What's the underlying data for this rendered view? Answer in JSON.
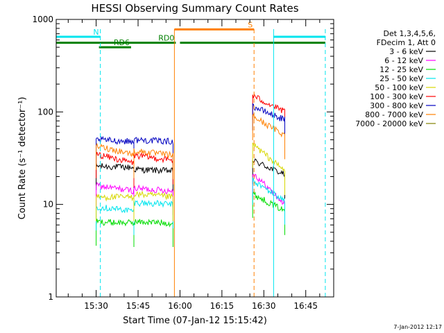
{
  "chart_data": {
    "type": "line",
    "title": "HESSI Observing Summary Count Rates",
    "xlabel": "Start Time (07-Jan-12 15:15:42)",
    "ylabel": "Count Rate (s⁻¹ detector⁻¹)",
    "yscale": "log",
    "ylim": [
      1,
      1000
    ],
    "xlim": [
      "15:15:42",
      "16:55:00"
    ],
    "x_ticks": [
      "15:30",
      "15:45",
      "16:00",
      "16:15",
      "16:30",
      "16:45"
    ],
    "y_ticks": [
      "1",
      "10",
      "100",
      "1000"
    ],
    "legend_position": "right",
    "legend_header": [
      "Det 1,3,4,5,6,",
      "FDecim 1, Att 0"
    ],
    "timestamp": "7-Jan-2012 12:17",
    "segments": [
      {
        "start": "15:30:00",
        "end": "15:43:30"
      },
      {
        "start": "15:43:30",
        "end": "15:57:30"
      },
      {
        "start": "16:26:00",
        "end": "16:37:30"
      }
    ],
    "series": [
      {
        "name": "3 - 6 keV",
        "color": "#000000",
        "values": [
          [
            26,
            25
          ],
          [
            24,
            23
          ],
          [
            30,
            21
          ]
        ]
      },
      {
        "name": "6 - 12 keV",
        "color": "#ff00ff",
        "values": [
          [
            16,
            14
          ],
          [
            15,
            14
          ],
          [
            22,
            10
          ]
        ]
      },
      {
        "name": "12 - 25 keV",
        "color": "#00dd00",
        "values": [
          [
            6.5,
            6.3
          ],
          [
            6.5,
            6.3
          ],
          [
            13,
            8.5
          ]
        ]
      },
      {
        "name": "25 - 50 keV",
        "color": "#00e5ee",
        "values": [
          [
            9.5,
            8.5
          ],
          [
            10.5,
            10
          ],
          [
            18,
            11
          ]
        ]
      },
      {
        "name": "50 - 100 keV",
        "color": "#d7d700",
        "values": [
          [
            12,
            12
          ],
          [
            13,
            12
          ],
          [
            45,
            23
          ]
        ]
      },
      {
        "name": "100 - 300 keV",
        "color": "#ff0000",
        "values": [
          [
            35,
            28
          ],
          [
            34,
            30
          ],
          [
            150,
            100
          ]
        ]
      },
      {
        "name": "300 - 800 keV",
        "color": "#0000c0",
        "values": [
          [
            50,
            48
          ],
          [
            50,
            48
          ],
          [
            115,
            82
          ]
        ]
      },
      {
        "name": "800 - 7000 keV",
        "color": "#ff8000",
        "values": [
          [
            43,
            35
          ],
          [
            38,
            34
          ],
          [
            90,
            56
          ]
        ]
      },
      {
        "name": "7000 - 20000 keV",
        "color": "#808000",
        "values": [
          [],
          [],
          []
        ]
      }
    ],
    "flag_bars": [
      {
        "label": "N",
        "color": "#00e5ee",
        "level": 650,
        "spans": [
          [
            "15:15:42",
            "15:31:30"
          ],
          [
            "16:33:30",
            "16:52:00"
          ]
        ]
      },
      {
        "label": "S",
        "color": "#ff8000",
        "level": 780,
        "spans": [
          [
            "15:58:00",
            "16:26:30"
          ]
        ]
      },
      {
        "label": "RD0",
        "color": "#008000",
        "level": 560,
        "spans": [
          [
            "15:15:42",
            "15:58:30"
          ],
          [
            "16:00:00",
            "16:52:00"
          ]
        ]
      },
      {
        "label": "RD6",
        "color": "#008000",
        "level": 500,
        "spans": [
          [
            "15:31:00",
            "15:42:30"
          ]
        ]
      }
    ],
    "vertical_lines": [
      {
        "t": "15:31:30",
        "color": "#00e5ee",
        "style": "dashed"
      },
      {
        "t": "16:33:30",
        "color": "#00e5ee",
        "style": "solid"
      },
      {
        "t": "16:52:00",
        "color": "#00e5ee",
        "style": "dashed"
      },
      {
        "t": "15:58:00",
        "color": "#ff8000",
        "style": "solid"
      },
      {
        "t": "16:26:30",
        "color": "#ff8000",
        "style": "dashed"
      }
    ]
  }
}
